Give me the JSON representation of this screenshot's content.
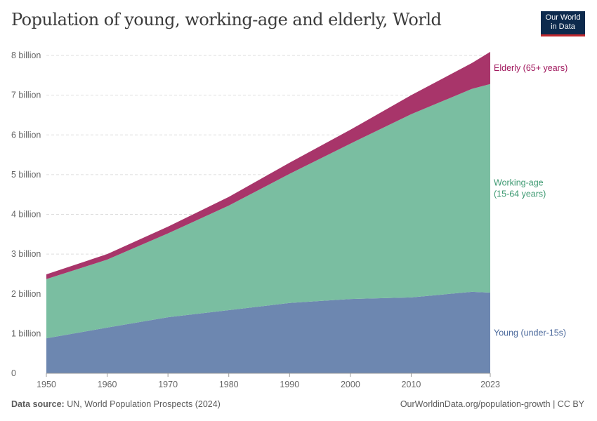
{
  "title": "Population of young, working-age and elderly, World",
  "logo": {
    "line1": "Our World",
    "line2": "in Data"
  },
  "footer": {
    "source_label": "Data source:",
    "source": "UN, World Population Prospects (2024)",
    "url": "OurWorldinData.org/population-growth | CC BY"
  },
  "chart_data": {
    "type": "area",
    "stacked": true,
    "title": "Population of young, working-age and elderly, World",
    "x": [
      1950,
      1960,
      1970,
      1980,
      1990,
      2000,
      2010,
      2020,
      2023
    ],
    "series": [
      {
        "name": "Young (under-15s)",
        "color": "#6d87b0",
        "values": [
          0.88,
          1.15,
          1.41,
          1.59,
          1.77,
          1.87,
          1.91,
          2.05,
          2.03
        ]
      },
      {
        "name": "Working-age (15-64 years)",
        "color": "#7abea1",
        "values": [
          1.49,
          1.71,
          2.11,
          2.63,
          3.25,
          3.91,
          4.61,
          5.11,
          5.25
        ]
      },
      {
        "name": "Elderly (65+ years)",
        "color": "#a8356a",
        "values": [
          0.12,
          0.14,
          0.17,
          0.22,
          0.28,
          0.35,
          0.48,
          0.65,
          0.81
        ]
      }
    ],
    "label_colors": [
      "#4c6a9c",
      "#3e9a72",
      "#a1195e"
    ],
    "ylim": [
      0,
      8
    ],
    "yticks": [
      0,
      1,
      2,
      3,
      4,
      5,
      6,
      7,
      8
    ],
    "ytick_labels": [
      "0",
      "1 billion",
      "2 billion",
      "3 billion",
      "4 billion",
      "5 billion",
      "6 billion",
      "7 billion",
      "8 billion"
    ],
    "xticks": [
      1950,
      1960,
      1970,
      1980,
      1990,
      2000,
      2010,
      2023
    ],
    "xtick_labels": [
      "1950",
      "1960",
      "1970",
      "1980",
      "1990",
      "2000",
      "2010",
      "2023"
    ],
    "series_labels": [
      [
        "Young (under-15s)"
      ],
      [
        "Working-age",
        "(15-64 years)"
      ],
      [
        "Elderly (65+ years)"
      ]
    ],
    "grid": true,
    "legend": "right (inline labels)"
  }
}
